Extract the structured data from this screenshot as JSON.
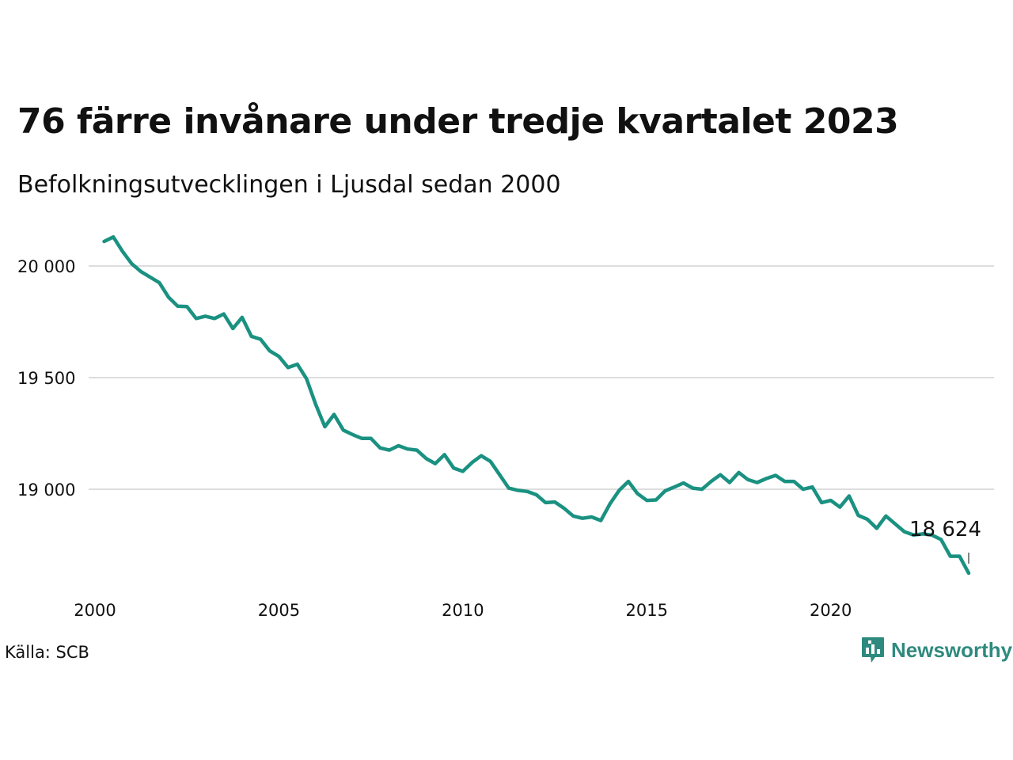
{
  "header": {
    "title": "76 färre invånare under tredje kvartalet 2023",
    "subtitle": "Befolkningsutvecklingen i Ljusdal sedan 2000"
  },
  "footer": {
    "source": "Källa: SCB",
    "brand": "Newsworthy",
    "brand_icon": "bar-chart-speech-bubble-icon"
  },
  "colors": {
    "line": "#1a9181",
    "grid": "#dddddd",
    "brand": "#2e8a7e"
  },
  "chart_data": {
    "type": "line",
    "title": "76 färre invånare under tredje kvartalet 2023",
    "subtitle": "Befolkningsutvecklingen i Ljusdal sedan 2000",
    "xlabel": "",
    "ylabel": "",
    "x_ticks": [
      2000,
      2005,
      2010,
      2015,
      2020
    ],
    "x_tick_labels": [
      "2000",
      "2005",
      "2010",
      "2015",
      "2020"
    ],
    "y_ticks": [
      19000,
      19500,
      20000
    ],
    "y_tick_labels": [
      "19 000",
      "19 500",
      "20 000"
    ],
    "xlim": [
      2000,
      2023.75
    ],
    "ylim": [
      18600,
      20150
    ],
    "grid": "horizontal",
    "legend": "none",
    "last_value_label": "18 624",
    "series": [
      {
        "x": [
          2000.25,
          2000.5,
          2000.75,
          2001,
          2001.25,
          2001.5,
          2001.75,
          2002,
          2002.25,
          2002.5,
          2002.75,
          2003,
          2003.25,
          2003.5,
          2003.75,
          2004,
          2004.25,
          2004.5,
          2004.75,
          2005,
          2005.25,
          2005.5,
          2005.75,
          2006,
          2006.25,
          2006.5,
          2006.75,
          2007,
          2007.25,
          2007.5,
          2007.75,
          2008,
          2008.25,
          2008.5,
          2008.75,
          2009,
          2009.25,
          2009.5,
          2009.75,
          2010,
          2010.25,
          2010.5,
          2010.75,
          2011,
          2011.25,
          2011.5,
          2011.75,
          2012,
          2012.25,
          2012.5,
          2012.75,
          2013,
          2013.25,
          2013.5,
          2013.75,
          2014,
          2014.25,
          2014.5,
          2014.75,
          2015,
          2015.25,
          2015.5,
          2015.75,
          2016,
          2016.25,
          2016.5,
          2016.75,
          2017,
          2017.25,
          2017.5,
          2017.75,
          2018,
          2018.25,
          2018.5,
          2018.75,
          2019,
          2019.25,
          2019.5,
          2019.75,
          2020,
          2020.25,
          2020.5,
          2020.75,
          2021,
          2021.25,
          2021.5,
          2021.75,
          2022,
          2022.25,
          2022.5,
          2022.75,
          2023,
          2023.25,
          2023.5,
          2023.75
        ],
        "y": [
          20110,
          20130,
          20065,
          20010,
          19975,
          19950,
          19925,
          19860,
          19820,
          19818,
          19765,
          19775,
          19765,
          19785,
          19720,
          19770,
          19685,
          19672,
          19620,
          19595,
          19545,
          19560,
          19495,
          19380,
          19280,
          19335,
          19265,
          19245,
          19228,
          19228,
          19185,
          19175,
          19195,
          19180,
          19175,
          19138,
          19115,
          19155,
          19095,
          19080,
          19120,
          19150,
          19125,
          19065,
          19005,
          18995,
          18990,
          18975,
          18940,
          18943,
          18915,
          18880,
          18870,
          18876,
          18860,
          18935,
          18995,
          19035,
          18980,
          18950,
          18952,
          18993,
          19010,
          19028,
          19005,
          19000,
          19035,
          19065,
          19030,
          19075,
          19043,
          19030,
          19048,
          19062,
          19035,
          19035,
          19000,
          19010,
          18940,
          18950,
          18920,
          18970,
          18883,
          18865,
          18825,
          18880,
          18845,
          18810,
          18795,
          18800,
          18795,
          18775,
          18700,
          18700,
          18624
        ]
      }
    ]
  }
}
